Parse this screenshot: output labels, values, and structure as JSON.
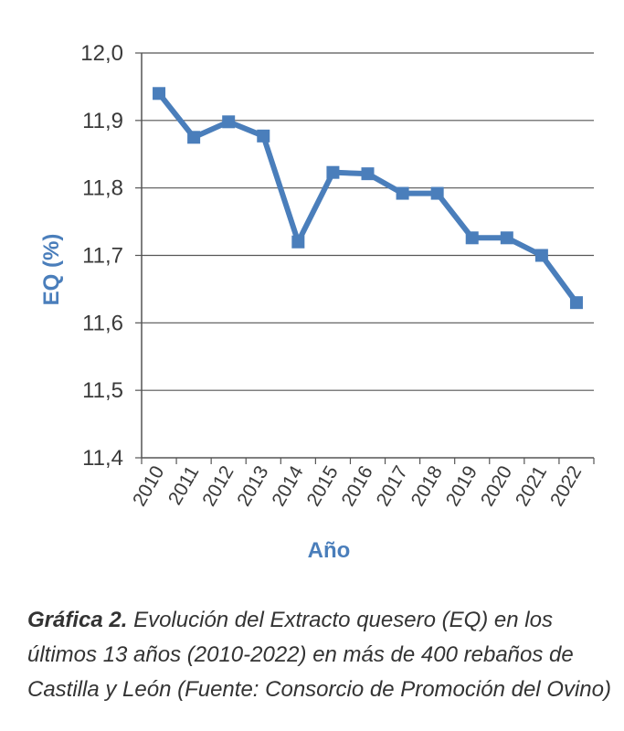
{
  "chart_data": {
    "type": "line",
    "categories": [
      "2010",
      "2011",
      "2012",
      "2013",
      "2014",
      "2015",
      "2016",
      "2017",
      "2018",
      "2019",
      "2020",
      "2021",
      "2022"
    ],
    "series": [
      {
        "values": [
          11.94,
          11.875,
          11.898,
          11.877,
          11.72,
          11.823,
          11.821,
          11.792,
          11.792,
          11.726,
          11.726,
          11.7,
          11.63
        ]
      }
    ],
    "y_ticks": [
      "11,4",
      "11,5",
      "11,6",
      "11,7",
      "11,8",
      "11,9",
      "12,0"
    ],
    "ylim": [
      11.4,
      12.0
    ],
    "ylabel": "EQ (%)",
    "xlabel": "Año",
    "grid": true,
    "color": "#4a7ebb"
  },
  "caption": {
    "label": "Gráfica 2.",
    "text": " Evolución del Extracto quesero (EQ) en los últimos 13 años (2010-2022) en más de 400 rebaños de Castilla y León (Fuente: Consorcio de Promoción del Ovino)"
  }
}
